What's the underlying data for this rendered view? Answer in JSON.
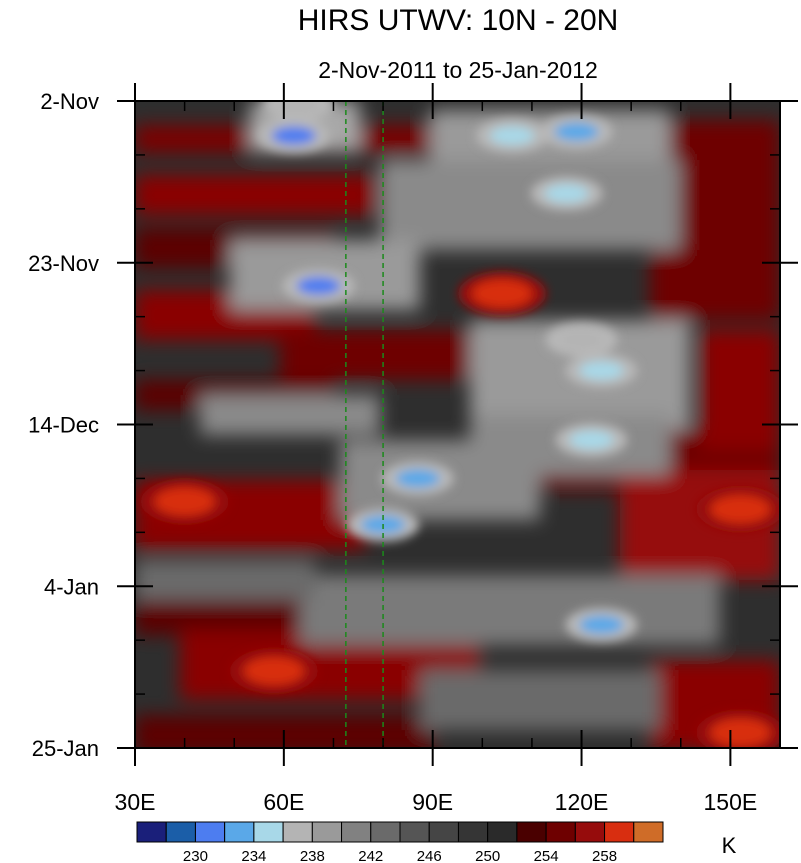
{
  "chart_data": {
    "type": "heatmap",
    "title": "HIRS UTWV: 10N - 20N",
    "subtitle": "2-Nov-2011 to 25-Jan-2012",
    "x_axis": {
      "range": [
        30,
        160
      ],
      "ticks": [
        30,
        60,
        90,
        120,
        150
      ],
      "tick_labels": [
        "30E",
        "60E",
        "90E",
        "120E",
        "150E"
      ]
    },
    "y_axis": {
      "range_days": [
        0,
        84
      ],
      "ticks": [
        0,
        21,
        42,
        63,
        84
      ],
      "tick_labels": [
        "2-Nov",
        "23-Nov",
        "14-Dec",
        "4-Jan",
        "25-Jan"
      ],
      "direction": "top-to-bottom"
    },
    "reference_lines_lon": [
      72.5,
      80
    ],
    "colorbar": {
      "unit": "K",
      "levels": [
        228,
        230,
        232,
        234,
        236,
        238,
        240,
        242,
        244,
        246,
        248,
        250,
        252,
        254,
        256,
        258
      ],
      "labels": [
        "230",
        "234",
        "238",
        "242",
        "246",
        "250",
        "254",
        "258"
      ],
      "label_values": [
        230,
        234,
        238,
        242,
        246,
        250,
        254,
        258
      ],
      "colors": [
        "#1a1f7a",
        "#1b5ea8",
        "#4d7df0",
        "#5aa8e8",
        "#a8d8e8",
        "#b4b4b4",
        "#9a9a9a",
        "#818181",
        "#6a6a6a",
        "#555555",
        "#454545",
        "#353535",
        "#2a2a2a",
        "#4a0000",
        "#6e0000",
        "#960c0c",
        "#d82e10",
        "#cf6c28"
      ]
    },
    "features": [
      {
        "lon": 63,
        "day": 0.5,
        "value": 236,
        "note": "cold"
      },
      {
        "lon": 62,
        "day": 4.5,
        "value": 230
      },
      {
        "lon": 106,
        "day": 4.5,
        "value": 234
      },
      {
        "lon": 119,
        "day": 4,
        "value": 232
      },
      {
        "lon": 117,
        "day": 12,
        "value": 234
      },
      {
        "lon": 67,
        "day": 24,
        "value": 230
      },
      {
        "lon": 104,
        "day": 25,
        "value": 258
      },
      {
        "lon": 120,
        "day": 31,
        "value": 236
      },
      {
        "lon": 124,
        "day": 35,
        "value": 234
      },
      {
        "lon": 122,
        "day": 44,
        "value": 234
      },
      {
        "lon": 87,
        "day": 49,
        "value": 232
      },
      {
        "lon": 80,
        "day": 55,
        "value": 232
      },
      {
        "lon": 124,
        "day": 68,
        "value": 232
      },
      {
        "lon": 40,
        "day": 52,
        "value": 258
      },
      {
        "lon": 152,
        "day": 53,
        "value": 260
      },
      {
        "lon": 152,
        "day": 82,
        "value": 260
      },
      {
        "lon": 58,
        "day": 74,
        "value": 258
      }
    ]
  }
}
